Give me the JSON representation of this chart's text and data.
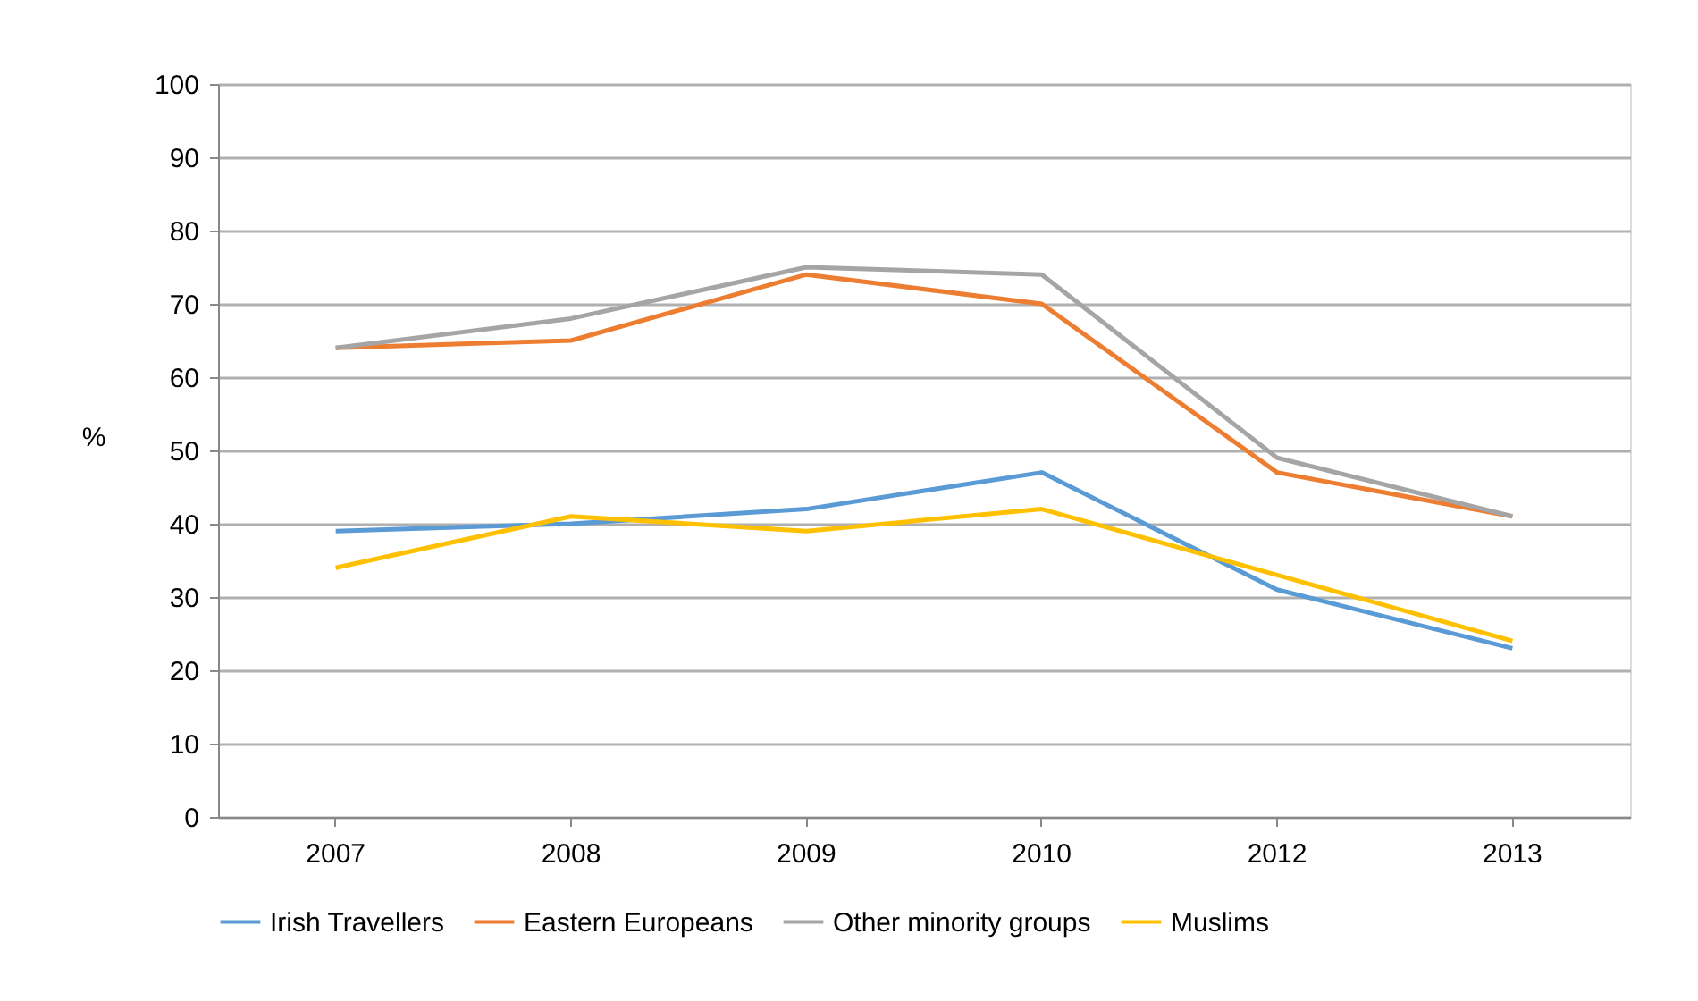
{
  "chart_data": {
    "type": "line",
    "ylabel": "%",
    "categories": [
      "2007",
      "2008",
      "2009",
      "2010",
      "2012",
      "2013"
    ],
    "series": [
      {
        "name": "Irish Travellers",
        "color": "#5b9bd5",
        "values": [
          39,
          40,
          42,
          47,
          31,
          23
        ]
      },
      {
        "name": "Eastern Europeans",
        "color": "#ed7d31",
        "values": [
          64,
          65,
          74,
          70,
          47,
          41
        ]
      },
      {
        "name": "Other minority groups",
        "color": "#a5a5a5",
        "values": [
          64,
          68,
          75,
          74,
          49,
          41
        ]
      },
      {
        "name": "Muslims",
        "color": "#ffc000",
        "values": [
          34,
          41,
          39,
          42,
          33,
          24
        ]
      }
    ],
    "ylim": [
      0,
      100
    ],
    "yticks": [
      0,
      10,
      20,
      30,
      40,
      50,
      60,
      70,
      80,
      90,
      100
    ],
    "grid": "y",
    "legend": "bottom",
    "marker": "none",
    "line_style": "solid"
  }
}
